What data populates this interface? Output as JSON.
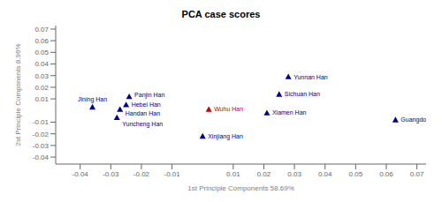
{
  "chart_data": {
    "type": "scatter",
    "title": "PCA case scores",
    "x_label": "1st Principle Components 58.69%",
    "y_label": "2st Principle Components 8.96%",
    "xlim": [
      -0.048,
      0.073
    ],
    "ylim": [
      -0.046,
      0.073
    ],
    "xticks": [
      -0.04,
      -0.03,
      -0.02,
      -0.01,
      0.01,
      0.02,
      0.03,
      0.04,
      0.05,
      0.06,
      0.07
    ],
    "yticks": [
      -0.04,
      -0.03,
      -0.02,
      -0.01,
      0.01,
      0.02,
      0.03,
      0.04,
      0.05,
      0.06,
      0.07
    ],
    "marker": "triangle",
    "grid": false,
    "series": [
      {
        "name": "Wuhu Han",
        "color": "#cc0000",
        "x": [
          0.002
        ],
        "values": [
          0.001
        ]
      },
      {
        "name": "Yunnan Han",
        "color": "#00008B",
        "x": [
          0.028
        ],
        "values": [
          0.029
        ]
      },
      {
        "name": "Sichuan Han",
        "color": "#00008B",
        "x": [
          0.025
        ],
        "values": [
          0.014
        ]
      },
      {
        "name": "Xiamen Han",
        "color": "#00008B",
        "x": [
          0.021
        ],
        "values": [
          -0.002
        ]
      },
      {
        "name": "Guangdong Han",
        "color": "#00008B",
        "x": [
          0.063
        ],
        "values": [
          -0.008
        ]
      },
      {
        "name": "Xinjiang Han",
        "color": "#00008B",
        "x": [
          0.0
        ],
        "values": [
          -0.022
        ]
      },
      {
        "name": "Panjin Han",
        "color": "#00008B",
        "x": [
          -0.024
        ],
        "values": [
          0.012
        ]
      },
      {
        "name": "Jining Han",
        "color": "#00008B",
        "x": [
          -0.036
        ],
        "values": [
          0.003
        ]
      },
      {
        "name": "Hebei Han",
        "color": "#00008B",
        "x": [
          -0.025
        ],
        "values": [
          0.005
        ]
      },
      {
        "name": "Handan Han",
        "color": "#00008B",
        "x": [
          -0.027
        ],
        "values": [
          0.001
        ]
      },
      {
        "name": "Yuncheng Han",
        "color": "#00008B",
        "x": [
          -0.028
        ],
        "values": [
          -0.006
        ]
      }
    ]
  }
}
